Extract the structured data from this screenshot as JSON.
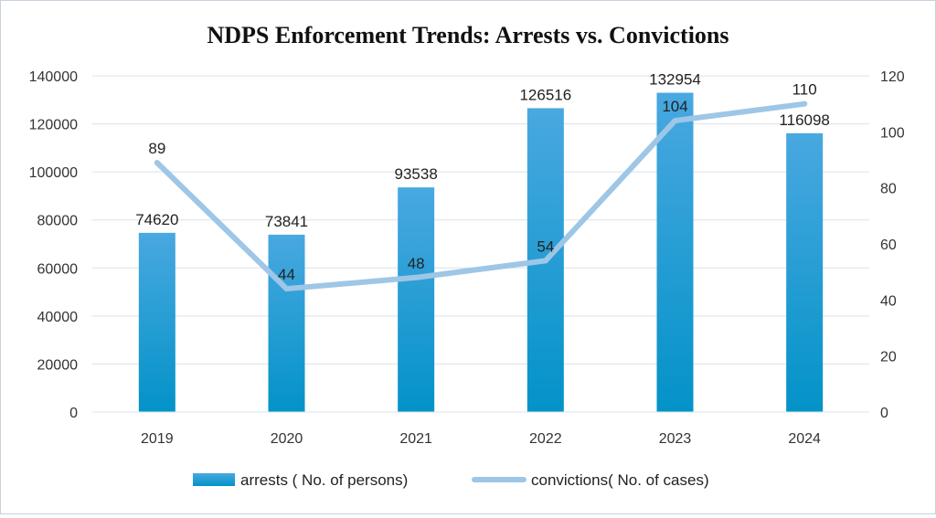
{
  "chart_data": {
    "type": "bar+line",
    "title": "NDPS Enforcement Trends: Arrests vs. Convictions",
    "categories": [
      "2019",
      "2020",
      "2021",
      "2022",
      "2023",
      "2024"
    ],
    "series": [
      {
        "name": "arrests ( No. of persons)",
        "type": "bar",
        "axis": "left",
        "values": [
          74620,
          73841,
          93538,
          126516,
          132954,
          116098
        ],
        "labels": [
          "74620",
          "73841",
          "93538",
          "126516",
          "132954",
          "116098"
        ]
      },
      {
        "name": "convictions( No. of cases)",
        "type": "line",
        "axis": "right",
        "values": [
          89,
          44,
          48,
          54,
          104,
          110
        ],
        "labels": [
          "89",
          "44",
          "48",
          "54",
          "104",
          "110"
        ]
      }
    ],
    "y_left": {
      "ylim": [
        0,
        140000
      ],
      "ticks": [
        0,
        20000,
        40000,
        60000,
        80000,
        100000,
        120000,
        140000
      ],
      "tick_labels": [
        "0",
        "20000",
        "40000",
        "60000",
        "80000",
        "100000",
        "120000",
        "140000"
      ]
    },
    "y_right": {
      "ylim": [
        0,
        120
      ],
      "ticks": [
        0,
        20,
        40,
        60,
        80,
        100,
        120
      ],
      "tick_labels": [
        "0",
        "20",
        "40",
        "60",
        "80",
        "100",
        "120"
      ]
    },
    "grid": true,
    "legend_position": "bottom",
    "colors": {
      "bar_top": "#49a8e0",
      "bar_bottom": "#0393c8",
      "line": "#9ec6e6",
      "grid": "#d9e3ec",
      "axis_text": "#333333"
    }
  }
}
